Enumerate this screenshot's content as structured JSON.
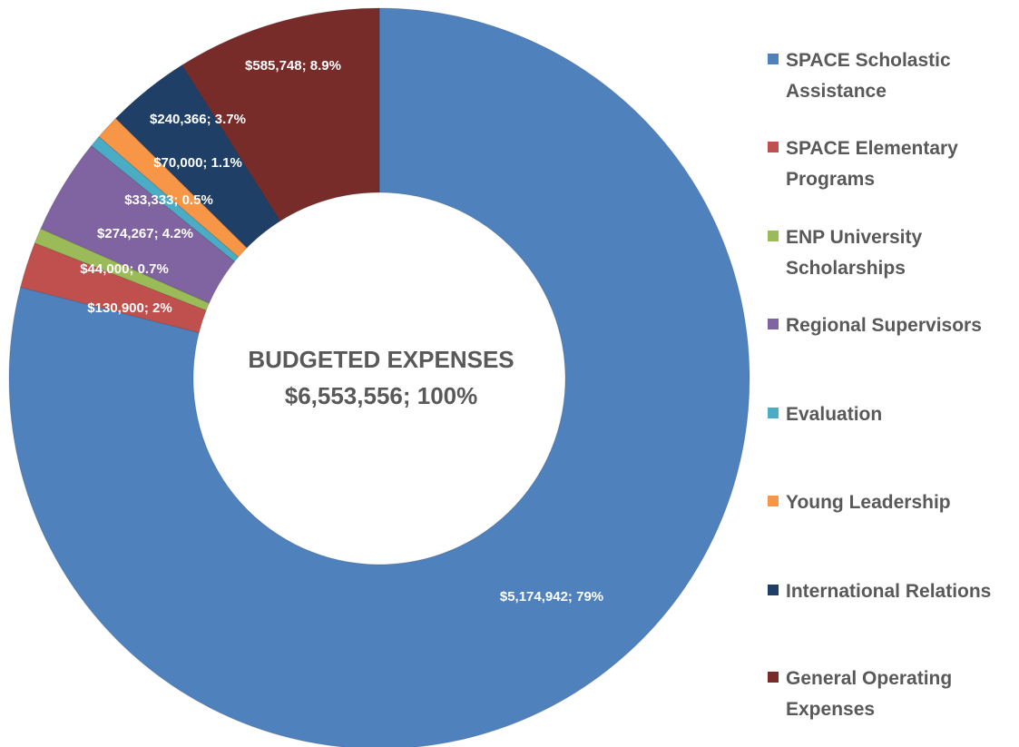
{
  "chart_data": {
    "type": "donut",
    "center_title": "BUDGETED EXPENSES",
    "center_total": "$6,553,556; 100%",
    "categories": [
      "SPACE Scholastic Assistance",
      "SPACE Elementary Programs",
      "ENP University Scholarships",
      "Regional Supervisors",
      "Evaluation",
      "Young Leadership",
      "International Relations",
      "General Operating Expenses"
    ],
    "values": [
      5174942,
      130900,
      44000,
      274267,
      33333,
      70000,
      240366,
      585748
    ],
    "value_labels": [
      "$5,174,942; 79%",
      "$130,900; 2%",
      "$44,000; 0.7%",
      "$274,267; 4.2%",
      "$33,333; 0.5%",
      "$70,000; 1.1%",
      "$240,366; 3.7%",
      "$585,748; 8.9%"
    ],
    "colors": [
      "#4f81bd",
      "#c0504d",
      "#9bbb59",
      "#8064a2",
      "#4bacc6",
      "#f79646",
      "#1f3f66",
      "#772c2a"
    ],
    "legend": "right"
  }
}
